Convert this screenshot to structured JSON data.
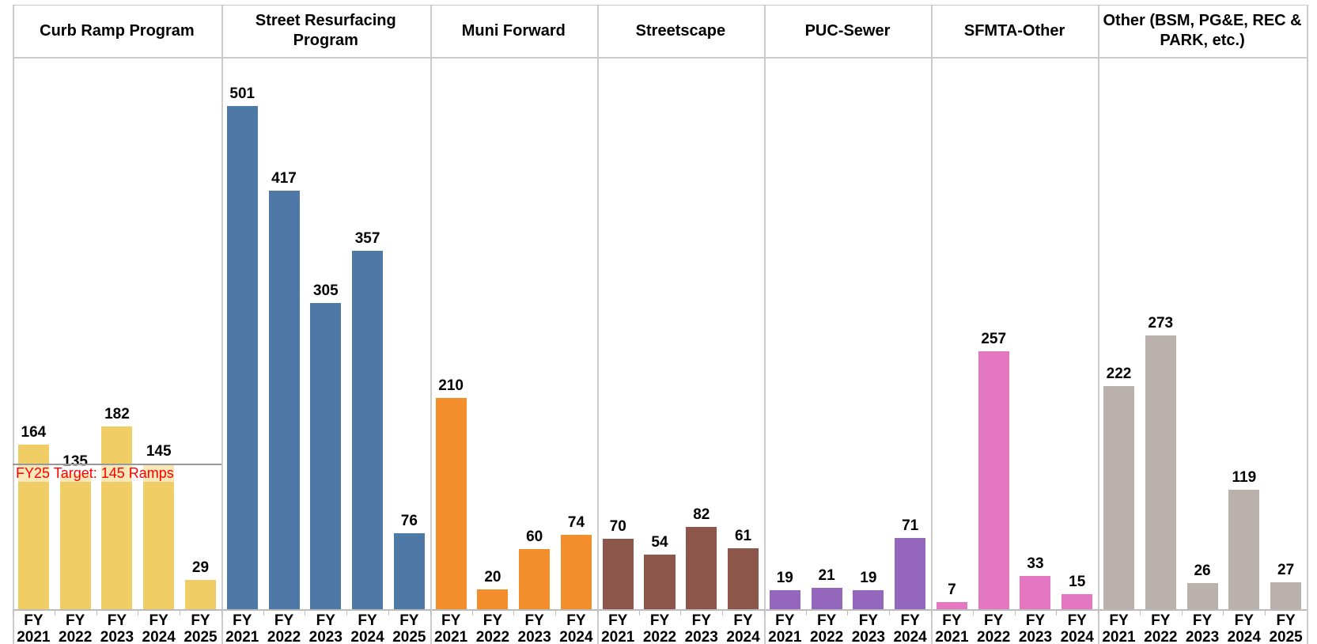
{
  "chart_data": {
    "type": "bar",
    "ylim": [
      0,
      550
    ],
    "panels": [
      {
        "title": "Curb Ramp Program",
        "color": "#f0cd65",
        "categories": [
          "FY 2021",
          "FY 2022",
          "FY 2023",
          "FY 2024",
          "FY 2025"
        ],
        "values": [
          164,
          135,
          182,
          145,
          29
        ]
      },
      {
        "title": "Street Resurfacing Program",
        "color": "#4e79a7",
        "categories": [
          "FY 2021",
          "FY 2022",
          "FY 2023",
          "FY 2024",
          "FY 2025"
        ],
        "values": [
          501,
          417,
          305,
          357,
          76
        ]
      },
      {
        "title": "Muni Forward",
        "color": "#f28e2b",
        "categories": [
          "FY 2021",
          "FY 2022",
          "FY 2023",
          "FY 2024"
        ],
        "values": [
          210,
          20,
          60,
          74
        ]
      },
      {
        "title": "Streetscape",
        "color": "#8c564b",
        "categories": [
          "FY 2021",
          "FY 2022",
          "FY 2023",
          "FY 2024"
        ],
        "values": [
          70,
          54,
          82,
          61
        ]
      },
      {
        "title": "PUC-Sewer",
        "color": "#9467bd",
        "categories": [
          "FY 2021",
          "FY 2022",
          "FY 2023",
          "FY 2024"
        ],
        "values": [
          19,
          21,
          19,
          71
        ]
      },
      {
        "title": "SFMTA-Other",
        "color": "#e377c2",
        "categories": [
          "FY 2021",
          "FY 2022",
          "FY 2023",
          "FY 2024"
        ],
        "values": [
          7,
          257,
          33,
          15
        ]
      },
      {
        "title": "Other (BSM, PG&E, REC & PARK, etc.)",
        "color": "#bab0ac",
        "categories": [
          "FY 2021",
          "FY 2022",
          "FY 2023",
          "FY 2024",
          "FY 2025"
        ],
        "values": [
          222,
          273,
          26,
          119,
          27
        ]
      }
    ],
    "reference_line": {
      "panel": 0,
      "value": 145,
      "label": "FY25 Target: 145 Ramps",
      "color": "#ff0000"
    }
  }
}
